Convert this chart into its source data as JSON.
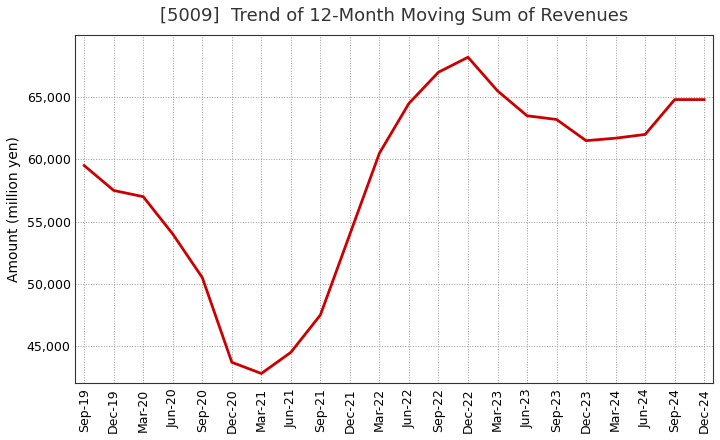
{
  "title": "[5009]  Trend of 12-Month Moving Sum of Revenues",
  "ylabel": "Amount (million yen)",
  "line_color": "#cc0000",
  "line_width": 2.0,
  "background_color": "#ffffff",
  "plot_bg_color": "#ffffff",
  "grid_color": "#999999",
  "x_labels": [
    "Sep-19",
    "Dec-19",
    "Mar-20",
    "Jun-20",
    "Sep-20",
    "Dec-20",
    "Mar-21",
    "Jun-21",
    "Sep-21",
    "Dec-21",
    "Mar-22",
    "Jun-22",
    "Sep-22",
    "Dec-22",
    "Mar-23",
    "Jun-23",
    "Sep-23",
    "Dec-23",
    "Mar-24",
    "Jun-24",
    "Sep-24",
    "Dec-24"
  ],
  "y_values": [
    59500,
    57500,
    57000,
    54000,
    50500,
    43700,
    42800,
    44500,
    47500,
    54000,
    60500,
    64500,
    67000,
    68200,
    65500,
    63500,
    63200,
    61500,
    61700,
    62000,
    64800,
    64800
  ],
  "ylim": [
    42000,
    70000
  ],
  "yticks": [
    45000,
    50000,
    55000,
    60000,
    65000
  ],
  "title_fontsize": 13,
  "axis_fontsize": 10,
  "tick_fontsize": 9
}
